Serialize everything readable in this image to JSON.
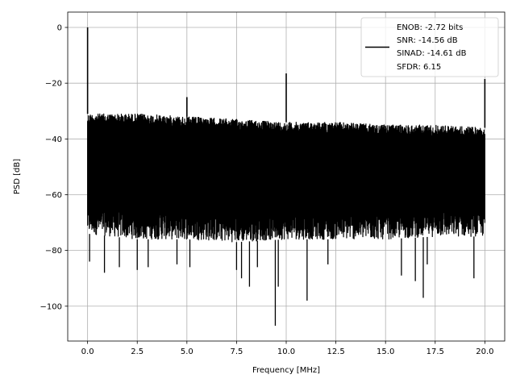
{
  "chart_data": {
    "type": "line",
    "xlabel": "Frequency [MHz]",
    "ylabel": "PSD [dB]",
    "xlim": [
      -1.0,
      21.0
    ],
    "ylim": [
      -112.5,
      5.5
    ],
    "x_ticks": [
      0.0,
      2.5,
      5.0,
      7.5,
      10.0,
      12.5,
      15.0,
      17.5,
      20.0
    ],
    "x_tick_labels": [
      "0.0",
      "2.5",
      "5.0",
      "7.5",
      "10.0",
      "12.5",
      "15.0",
      "17.5",
      "20.0"
    ],
    "y_ticks": [
      0,
      -20,
      -40,
      -60,
      -80,
      -100
    ],
    "y_tick_labels": [
      "0",
      "−20",
      "−40",
      "−60",
      "−80",
      "−100"
    ],
    "grid": true,
    "legend_position": "top-right",
    "series_color": "#000000",
    "series": [
      {
        "name": "ENOB: -2.72 bits\nSNR: -14.56 dB\nSINAD: -14.61 dB\nSFDR: 6.15",
        "noise_floor_envelope": {
          "x": [
            0.0,
            2.5,
            5.0,
            7.5,
            10.0,
            12.5,
            15.0,
            17.5,
            20.0
          ],
          "upper": [
            -31,
            -31,
            -32,
            -33,
            -34,
            -34,
            -35,
            -35,
            -36
          ],
          "lower": [
            -74,
            -76,
            -76,
            -77,
            -76,
            -76,
            -76,
            -75,
            -75
          ]
        },
        "spikes": [
          {
            "x": 0.0,
            "y": 0.0
          },
          {
            "x": 5.0,
            "y": -25.0
          },
          {
            "x": 10.0,
            "y": -16.5
          },
          {
            "x": 20.0,
            "y": -18.5
          }
        ],
        "dips": [
          {
            "x": 0.1,
            "y": -84
          },
          {
            "x": 0.85,
            "y": -88
          },
          {
            "x": 1.6,
            "y": -86
          },
          {
            "x": 2.5,
            "y": -87
          },
          {
            "x": 3.05,
            "y": -86
          },
          {
            "x": 4.5,
            "y": -85
          },
          {
            "x": 5.15,
            "y": -86
          },
          {
            "x": 7.5,
            "y": -87
          },
          {
            "x": 7.75,
            "y": -90
          },
          {
            "x": 8.15,
            "y": -93
          },
          {
            "x": 8.55,
            "y": -86
          },
          {
            "x": 9.45,
            "y": -107
          },
          {
            "x": 9.6,
            "y": -93
          },
          {
            "x": 11.05,
            "y": -98
          },
          {
            "x": 12.1,
            "y": -85
          },
          {
            "x": 15.8,
            "y": -89
          },
          {
            "x": 16.5,
            "y": -91
          },
          {
            "x": 16.9,
            "y": -97
          },
          {
            "x": 17.1,
            "y": -85
          },
          {
            "x": 19.45,
            "y": -90
          }
        ]
      }
    ],
    "legend_lines": [
      "ENOB: -2.72 bits",
      "SNR: -14.56 dB",
      "SINAD: -14.61 dB",
      "SFDR: 6.15"
    ]
  }
}
